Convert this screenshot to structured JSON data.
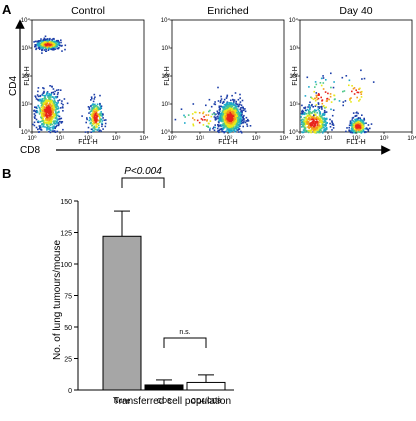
{
  "panel_a": {
    "letter": "A",
    "outer_y_label": "CD4",
    "outer_x_label": "CD8",
    "plots": [
      {
        "title": "Control",
        "xlabel": "FL1-H",
        "ylabel": "FL3-H",
        "x_ticks": [
          "10⁰",
          "10¹",
          "10²",
          "10³",
          "10⁴"
        ],
        "y_ticks": [
          "10⁰",
          "10¹",
          "10²",
          "10³",
          "10⁴"
        ],
        "populations": [
          {
            "x": 0.55,
            "y": 3.15,
            "sx": 0.22,
            "sy": 0.09,
            "n": 420
          },
          {
            "x": 0.55,
            "y": 0.75,
            "sx": 0.22,
            "sy": 0.38,
            "n": 620
          },
          {
            "x": 2.25,
            "y": 0.55,
            "sx": 0.13,
            "sy": 0.3,
            "n": 240
          }
        ]
      },
      {
        "title": "Enriched",
        "xlabel": "FL1-H",
        "ylabel": "FL3-H",
        "x_ticks": [
          "10⁰",
          "10¹",
          "10²",
          "10³",
          "10⁴"
        ],
        "y_ticks": [
          "10⁰",
          "10¹",
          "10²",
          "10³",
          "10⁴"
        ],
        "populations": [
          {
            "x": 2.05,
            "y": 0.55,
            "sx": 0.22,
            "sy": 0.3,
            "n": 950
          },
          {
            "x": 1.0,
            "y": 0.5,
            "sx": 0.4,
            "sy": 0.25,
            "n": 45
          }
        ]
      },
      {
        "title": "Day 40",
        "xlabel": "FL1-H",
        "ylabel": "FL3-H",
        "x_ticks": [
          "10⁰",
          "10¹",
          "10²",
          "10³",
          "10⁴"
        ],
        "y_ticks": [
          "10⁰",
          "10¹",
          "10²",
          "10³",
          "10⁴"
        ],
        "populations": [
          {
            "x": 0.45,
            "y": 0.35,
            "sx": 0.28,
            "sy": 0.3,
            "n": 480
          },
          {
            "x": 2.05,
            "y": 0.22,
            "sx": 0.16,
            "sy": 0.15,
            "n": 300
          },
          {
            "x": 0.8,
            "y": 1.3,
            "sx": 0.35,
            "sy": 0.35,
            "n": 70
          },
          {
            "x": 1.9,
            "y": 1.4,
            "sx": 0.3,
            "sy": 0.3,
            "n": 35
          }
        ]
      }
    ]
  },
  "chart_data": {
    "type": "bar",
    "panel": "B",
    "categories": [
      "None",
      "CD8",
      "CD4/CD8"
    ],
    "values": [
      122,
      4,
      6
    ],
    "errors": [
      20,
      4,
      6
    ],
    "bar_colors": [
      "#a6a6a6",
      "#000000",
      "#ffffff"
    ],
    "xlabel": "Transferred cell population",
    "ylabel": "No. of lung tumours/mouse",
    "ylim": [
      0,
      150
    ],
    "yticks": [
      0,
      25,
      50,
      75,
      100,
      125,
      150
    ],
    "annotations": [
      {
        "text": "P<0.004",
        "from": 0,
        "to": 1
      },
      {
        "text": "n.s.",
        "from": 1,
        "to": 2
      }
    ]
  }
}
